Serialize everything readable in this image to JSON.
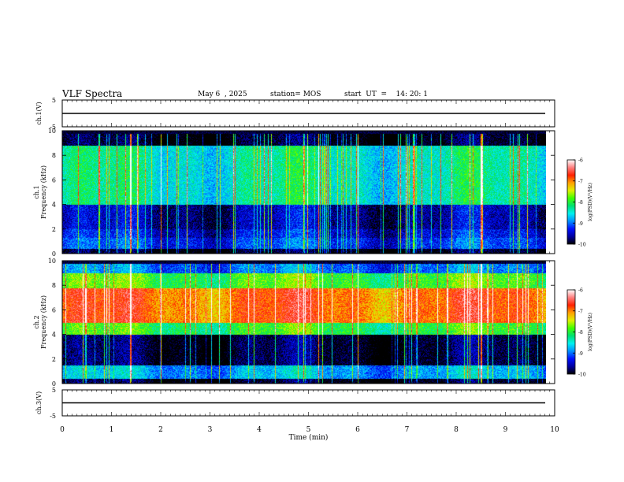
{
  "header": {
    "title": "VLF Spectra",
    "date": "May 6  , 2025",
    "station": "station= MOS",
    "start": "start  UT  =    14: 20: 1"
  },
  "colors": {
    "trace": "#000000",
    "background": "#ffffff",
    "colormap": [
      "#000000",
      "#0000a0",
      "#0010ff",
      "#0090ff",
      "#00f0f0",
      "#00e070",
      "#40ff00",
      "#e0f000",
      "#ffa000",
      "#ff2000",
      "#ff8080",
      "#ffffff"
    ]
  },
  "chart_data": [
    {
      "type": "line",
      "panel": "ch1-waveform",
      "ylabel": "ch.1(V)",
      "ylim": [
        -5,
        5
      ],
      "yticks": [
        "5",
        "-5"
      ],
      "x": [
        0,
        10
      ],
      "values": [
        0,
        0
      ]
    },
    {
      "type": "heatmap",
      "panel": "ch1-spectrogram",
      "ylabel": "ch.1\nFrequency (kHz)",
      "ylim": [
        0,
        10
      ],
      "yticks": [
        "0",
        "2",
        "4",
        "6",
        "8",
        "10"
      ],
      "xlim": [
        0,
        10
      ],
      "colorbar": {
        "label": "log(PSD)(V²/Hz)",
        "range": [
          -10,
          -6
        ],
        "ticks": [
          "-6",
          "-7",
          "-8",
          "-9",
          "-10"
        ]
      },
      "data_end_min": 9.82,
      "bands": [
        {
          "from": 8.8,
          "to": 9.8,
          "level": -10.0
        },
        {
          "from": 4.0,
          "to": 8.8,
          "level": -8.4
        },
        {
          "from": 2.0,
          "to": 4.0,
          "level": -9.6
        },
        {
          "from": 1.3,
          "to": 2.0,
          "level": -9.4
        },
        {
          "from": 0.4,
          "to": 1.3,
          "level": -9.2
        },
        {
          "from": 0.0,
          "to": 0.4,
          "level": -10.0
        }
      ],
      "bright_events_min": [
        1.38,
        2.0,
        5.2,
        6.0,
        8.5
      ]
    },
    {
      "type": "heatmap",
      "panel": "ch2-spectrogram",
      "ylabel": "ch.2\nFrequency (kHz)",
      "ylim": [
        0,
        10
      ],
      "yticks": [
        "0",
        "2",
        "4",
        "6",
        "8",
        "10"
      ],
      "xlim": [
        0,
        10
      ],
      "colorbar": {
        "label": "log(PSD)(V²/Hz)",
        "range": [
          -10,
          -6
        ],
        "ticks": [
          "-6",
          "-7",
          "-8",
          "-9",
          "-10"
        ]
      },
      "data_end_min": 9.82,
      "bands": [
        {
          "from": 9.0,
          "to": 9.8,
          "level": -9.0
        },
        {
          "from": 7.8,
          "to": 9.0,
          "level": -7.9
        },
        {
          "from": 5.0,
          "to": 7.8,
          "level": -6.9
        },
        {
          "from": 4.0,
          "to": 5.0,
          "level": -8.0
        },
        {
          "from": 1.5,
          "to": 4.0,
          "level": -9.9
        },
        {
          "from": 0.4,
          "to": 1.5,
          "level": -8.8
        },
        {
          "from": 0.0,
          "to": 0.4,
          "level": -10.0
        }
      ],
      "bright_events_min": [
        1.38,
        2.0,
        5.2,
        6.0,
        8.5
      ]
    },
    {
      "type": "line",
      "panel": "ch3-waveform",
      "ylabel": "ch.3(V)",
      "ylim": [
        -5,
        5
      ],
      "yticks": [
        "5",
        "-5"
      ],
      "x": [
        0,
        10
      ],
      "values": [
        0,
        0
      ]
    }
  ],
  "xaxis": {
    "label": "Time  (min)",
    "range": [
      0,
      10
    ],
    "ticks": [
      "0",
      "1",
      "2",
      "3",
      "4",
      "5",
      "6",
      "7",
      "8",
      "9",
      "10"
    ]
  }
}
